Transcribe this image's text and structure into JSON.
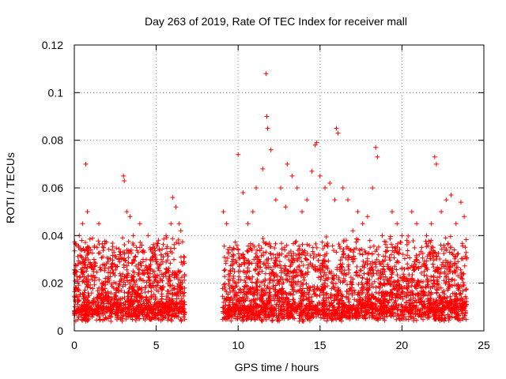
{
  "chart_data": {
    "type": "scatter",
    "title": "Day 263 of 2019, Rate Of TEC Index for receiver mall",
    "xlabel": "GPS time / hours",
    "ylabel": "ROTI / TECUs",
    "xlim": [
      0,
      25
    ],
    "ylim": [
      0,
      0.12
    ],
    "x_ticks": [
      0,
      5,
      10,
      15,
      20,
      25
    ],
    "x_tick_labels": [
      "0",
      "5",
      "10",
      "15",
      "20",
      "25"
    ],
    "y_ticks": [
      0,
      0.02,
      0.04,
      0.06,
      0.08,
      0.1,
      0.12
    ],
    "y_tick_labels": [
      "0",
      "0.02",
      "0.04",
      "0.06",
      "0.08",
      "0.1",
      "0.12"
    ],
    "grid": true,
    "marker": "plus",
    "marker_color": "#ff0000",
    "data_gap_hours": [
      6.75,
      9.05
    ],
    "series": [
      {
        "name": "ROTI",
        "x": [
          0.1,
          0.3,
          0.5,
          0.7,
          0.8,
          0.9,
          1.0,
          1.2,
          1.5,
          1.8,
          2.1,
          2.4,
          2.7,
          3.0,
          3.05,
          3.2,
          3.4,
          3.6,
          3.8,
          4.0,
          4.2,
          4.5,
          4.8,
          5.0,
          5.3,
          5.6,
          5.9,
          6.0,
          6.2,
          6.4,
          6.5,
          9.1,
          9.3,
          9.5,
          9.7,
          10.0,
          10.3,
          10.6,
          10.9,
          11.1,
          11.5,
          11.7,
          11.75,
          11.8,
          12.0,
          12.3,
          12.6,
          12.9,
          13.0,
          13.3,
          13.6,
          13.9,
          14.2,
          14.5,
          14.7,
          14.8,
          15.0,
          15.3,
          15.6,
          15.9,
          16.0,
          16.1,
          16.4,
          16.7,
          17.0,
          17.3,
          17.6,
          17.9,
          18.2,
          18.4,
          18.5,
          18.8,
          19.1,
          19.4,
          19.7,
          20.0,
          20.3,
          20.6,
          20.9,
          21.2,
          21.5,
          21.8,
          22.0,
          22.1,
          22.4,
          22.7,
          23.0,
          23.3,
          23.6,
          23.8
        ],
        "y": [
          0.025,
          0.04,
          0.045,
          0.07,
          0.05,
          0.035,
          0.028,
          0.03,
          0.045,
          0.02,
          0.022,
          0.018,
          0.03,
          0.065,
          0.063,
          0.05,
          0.048,
          0.04,
          0.035,
          0.045,
          0.03,
          0.04,
          0.035,
          0.03,
          0.028,
          0.04,
          0.045,
          0.056,
          0.052,
          0.045,
          0.042,
          0.05,
          0.045,
          0.035,
          0.03,
          0.074,
          0.058,
          0.045,
          0.05,
          0.06,
          0.068,
          0.108,
          0.09,
          0.085,
          0.076,
          0.055,
          0.06,
          0.052,
          0.07,
          0.065,
          0.06,
          0.05,
          0.055,
          0.067,
          0.078,
          0.079,
          0.065,
          0.06,
          0.062,
          0.055,
          0.085,
          0.083,
          0.06,
          0.055,
          0.042,
          0.05,
          0.045,
          0.048,
          0.06,
          0.077,
          0.073,
          0.04,
          0.035,
          0.05,
          0.045,
          0.04,
          0.038,
          0.05,
          0.045,
          0.035,
          0.04,
          0.045,
          0.073,
          0.07,
          0.05,
          0.055,
          0.057,
          0.045,
          0.054,
          0.048
        ]
      }
    ]
  }
}
